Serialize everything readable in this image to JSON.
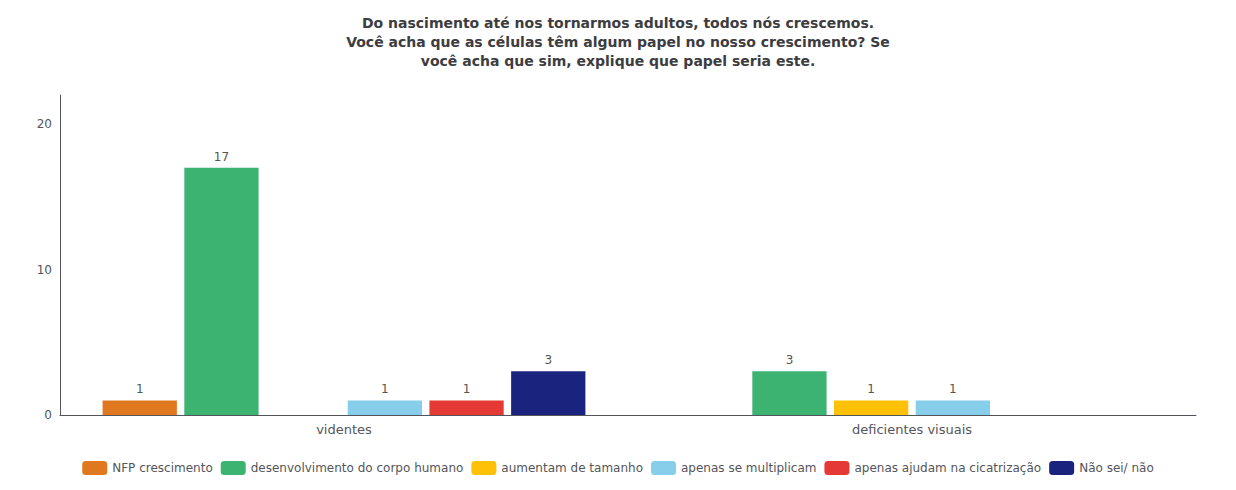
{
  "chart_data": {
    "type": "bar",
    "title": "Do nascimento até nos tornarmos adultos, todos nós crescemos.\nVocê acha que as células têm algum papel no nosso crescimento? Se\nvocê acha que sim, explique que papel seria este.",
    "categories": [
      "videntes",
      "deficientes visuais"
    ],
    "series": [
      {
        "name": "NFP crescimento",
        "color": "#E07820",
        "values": [
          1,
          null
        ]
      },
      {
        "name": "desenvolvimento do corpo humano",
        "color": "#3CB371",
        "values": [
          17,
          3
        ]
      },
      {
        "name": "aumentam de tamanho",
        "color": "#FFC107",
        "values": [
          null,
          1
        ]
      },
      {
        "name": "apenas se multiplicam",
        "color": "#87CEEB",
        "values": [
          1,
          1
        ]
      },
      {
        "name": "apenas ajudam na cicatrização",
        "color": "#E53935",
        "values": [
          1,
          null
        ]
      },
      {
        "name": "Não sei/ não",
        "color": "#1A237E",
        "values": [
          3,
          null
        ]
      }
    ],
    "ylim": [
      0,
      22
    ],
    "yticks": [
      0,
      10,
      20
    ],
    "grid": false,
    "legend": "bottom",
    "data_labels": true
  }
}
